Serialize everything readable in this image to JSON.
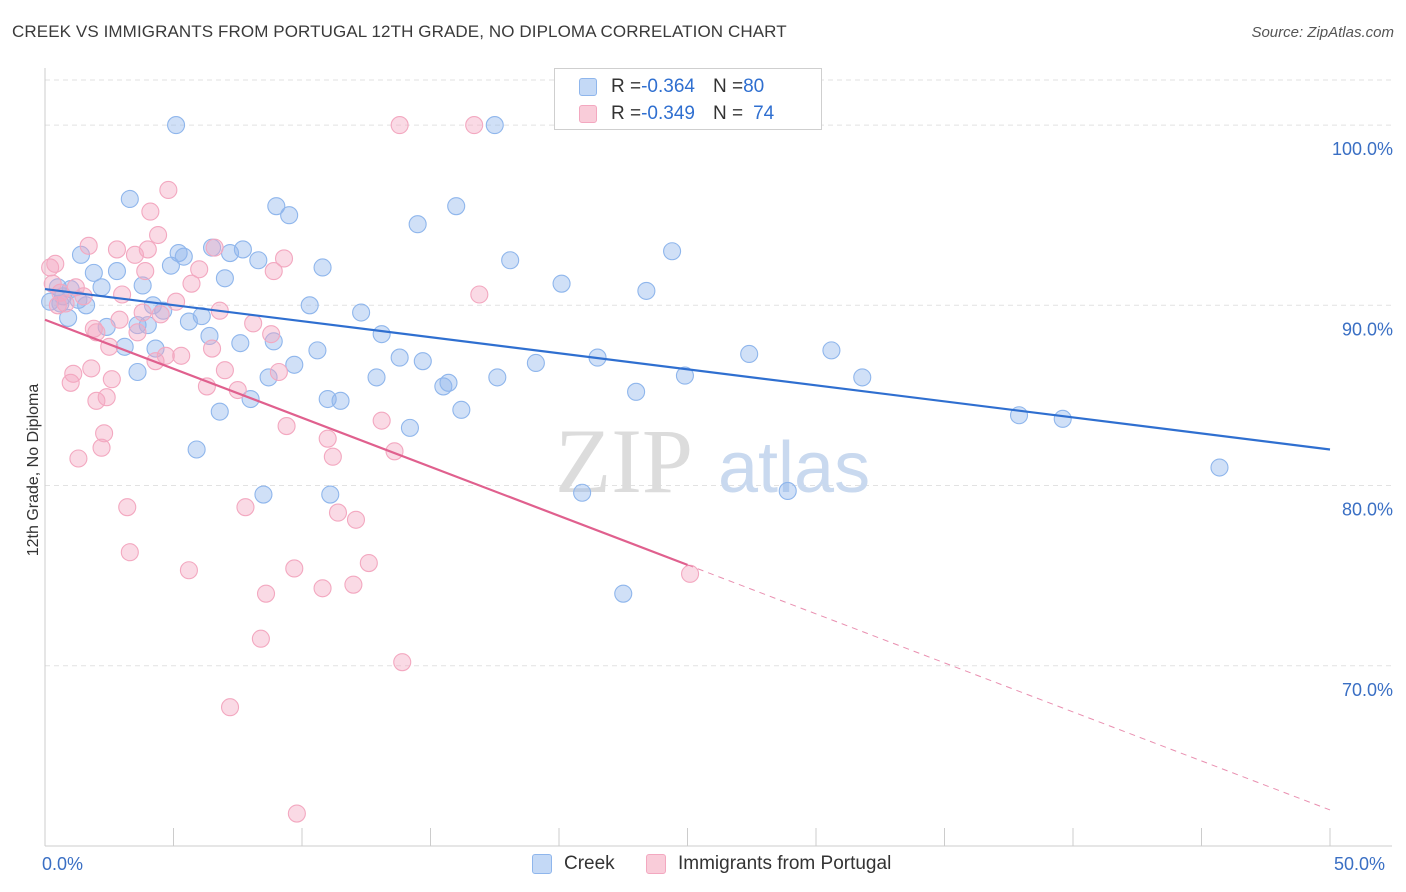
{
  "title": "CREEK VS IMMIGRANTS FROM PORTUGAL 12TH GRADE, NO DIPLOMA CORRELATION CHART",
  "source": "Source: ZipAtlas.com",
  "watermark": {
    "zip": "ZIP",
    "atlas": "atlas"
  },
  "legend_top": [
    {
      "r_label": "R = ",
      "r_value": "-0.364",
      "n_label": "N = ",
      "n_value": "80"
    },
    {
      "r_label": "R = ",
      "r_value": "-0.349",
      "n_label": "N = ",
      "n_value": "74"
    }
  ],
  "chart_data": {
    "type": "scatter",
    "xlabel": "",
    "ylabel": "12th Grade, No Diploma",
    "xlim": [
      0,
      50
    ],
    "ylim": [
      60,
      103.5
    ],
    "x_tick_labels": [
      "0.0%",
      "50.0%"
    ],
    "y_tick_values": [
      100,
      90,
      80,
      70
    ],
    "y_tick_labels": [
      "100.0%",
      "90.0%",
      "80.0%",
      "70.0%"
    ],
    "grid": true,
    "legend_position": "bottom",
    "series": [
      {
        "name": "Creek",
        "color": "#8fb6ec",
        "line_color": "#2f6fd0",
        "trend": {
          "x": [
            0,
            50
          ],
          "y": [
            90.9,
            82.0
          ],
          "dashed_from": null
        },
        "points": [
          [
            0.2,
            90.2
          ],
          [
            0.5,
            91.0
          ],
          [
            0.6,
            90.1
          ],
          [
            0.9,
            89.3
          ],
          [
            1.0,
            90.9
          ],
          [
            1.4,
            92.8
          ],
          [
            1.6,
            90.0
          ],
          [
            1.9,
            91.8
          ],
          [
            2.2,
            91.0
          ],
          [
            2.8,
            91.9
          ],
          [
            2.4,
            88.8
          ],
          [
            3.1,
            87.7
          ],
          [
            3.3,
            95.9
          ],
          [
            3.6,
            88.9
          ],
          [
            3.6,
            86.3
          ],
          [
            3.8,
            91.1
          ],
          [
            4.0,
            88.9
          ],
          [
            4.2,
            90.0
          ],
          [
            4.3,
            87.6
          ],
          [
            4.6,
            89.7
          ],
          [
            4.9,
            92.2
          ],
          [
            5.1,
            100.0
          ],
          [
            5.2,
            92.9
          ],
          [
            5.4,
            92.7
          ],
          [
            5.6,
            89.1
          ],
          [
            5.9,
            82.0
          ],
          [
            6.1,
            89.4
          ],
          [
            6.4,
            88.3
          ],
          [
            6.5,
            93.2
          ],
          [
            6.8,
            84.1
          ],
          [
            7.0,
            91.5
          ],
          [
            7.2,
            92.9
          ],
          [
            7.6,
            87.9
          ],
          [
            7.7,
            93.1
          ],
          [
            8.0,
            84.8
          ],
          [
            8.3,
            92.5
          ],
          [
            8.5,
            79.5
          ],
          [
            8.7,
            86.0
          ],
          [
            8.9,
            88.0
          ],
          [
            9.0,
            95.5
          ],
          [
            9.5,
            95.0
          ],
          [
            9.7,
            86.7
          ],
          [
            10.3,
            90.0
          ],
          [
            10.6,
            87.5
          ],
          [
            10.8,
            92.1
          ],
          [
            11.0,
            84.8
          ],
          [
            11.1,
            79.5
          ],
          [
            11.5,
            84.7
          ],
          [
            12.3,
            89.6
          ],
          [
            12.9,
            86.0
          ],
          [
            13.1,
            88.4
          ],
          [
            13.8,
            87.1
          ],
          [
            14.2,
            83.2
          ],
          [
            14.5,
            94.5
          ],
          [
            14.7,
            86.9
          ],
          [
            15.5,
            85.5
          ],
          [
            15.7,
            85.7
          ],
          [
            16.0,
            95.5
          ],
          [
            16.2,
            84.2
          ],
          [
            17.5,
            100.0
          ],
          [
            17.6,
            86.0
          ],
          [
            18.1,
            92.5
          ],
          [
            19.1,
            86.8
          ],
          [
            20.1,
            91.2
          ],
          [
            20.9,
            79.6
          ],
          [
            21.5,
            87.1
          ],
          [
            22.5,
            74.0
          ],
          [
            23.0,
            85.2
          ],
          [
            23.4,
            90.8
          ],
          [
            24.4,
            93.0
          ],
          [
            24.9,
            86.1
          ],
          [
            27.4,
            87.3
          ],
          [
            28.9,
            79.7
          ],
          [
            30.6,
            87.5
          ],
          [
            31.8,
            86.0
          ],
          [
            37.9,
            83.9
          ],
          [
            39.6,
            83.7
          ],
          [
            45.7,
            81.0
          ],
          [
            0.7,
            90.5
          ],
          [
            1.3,
            90.3
          ]
        ]
      },
      {
        "name": "Immigrants from Portugal",
        "color": "#f3a8c0",
        "line_color": "#e0608e",
        "trend": {
          "x": [
            0,
            50
          ],
          "y": [
            89.2,
            62.0
          ],
          "dashed_from": 25
        },
        "points": [
          [
            0.2,
            92.1
          ],
          [
            0.3,
            91.2
          ],
          [
            0.4,
            92.3
          ],
          [
            0.6,
            90.7
          ],
          [
            0.8,
            90.1
          ],
          [
            1.0,
            85.7
          ],
          [
            1.1,
            86.2
          ],
          [
            1.3,
            81.5
          ],
          [
            1.5,
            90.5
          ],
          [
            1.7,
            93.3
          ],
          [
            1.8,
            86.5
          ],
          [
            1.9,
            88.7
          ],
          [
            2.0,
            84.7
          ],
          [
            2.2,
            82.1
          ],
          [
            2.3,
            82.9
          ],
          [
            2.4,
            84.9
          ],
          [
            2.5,
            87.7
          ],
          [
            2.6,
            85.9
          ],
          [
            2.8,
            93.1
          ],
          [
            2.9,
            89.2
          ],
          [
            3.0,
            90.6
          ],
          [
            3.2,
            78.8
          ],
          [
            3.3,
            76.3
          ],
          [
            3.5,
            92.8
          ],
          [
            3.6,
            88.5
          ],
          [
            3.8,
            89.6
          ],
          [
            3.9,
            91.9
          ],
          [
            4.0,
            93.1
          ],
          [
            4.1,
            95.2
          ],
          [
            4.3,
            86.9
          ],
          [
            4.4,
            93.9
          ],
          [
            4.5,
            89.5
          ],
          [
            4.7,
            87.2
          ],
          [
            4.8,
            96.4
          ],
          [
            5.1,
            90.2
          ],
          [
            5.3,
            87.2
          ],
          [
            5.6,
            75.3
          ],
          [
            5.7,
            91.2
          ],
          [
            6.0,
            92.0
          ],
          [
            6.3,
            85.5
          ],
          [
            6.5,
            87.6
          ],
          [
            6.6,
            93.2
          ],
          [
            6.8,
            89.7
          ],
          [
            7.0,
            86.4
          ],
          [
            7.2,
            67.7
          ],
          [
            7.5,
            85.3
          ],
          [
            7.8,
            78.8
          ],
          [
            8.1,
            89.0
          ],
          [
            8.4,
            71.5
          ],
          [
            8.6,
            74.0
          ],
          [
            8.8,
            88.4
          ],
          [
            8.9,
            91.9
          ],
          [
            9.1,
            86.3
          ],
          [
            9.3,
            92.6
          ],
          [
            9.4,
            83.3
          ],
          [
            9.7,
            75.4
          ],
          [
            9.8,
            61.8
          ],
          [
            10.8,
            74.3
          ],
          [
            11.0,
            82.6
          ],
          [
            11.2,
            81.6
          ],
          [
            11.4,
            78.5
          ],
          [
            12.0,
            74.5
          ],
          [
            12.1,
            78.1
          ],
          [
            12.6,
            75.7
          ],
          [
            13.1,
            83.6
          ],
          [
            13.6,
            81.9
          ],
          [
            13.9,
            70.2
          ],
          [
            13.8,
            100.0
          ],
          [
            16.7,
            100.0
          ],
          [
            16.9,
            90.6
          ],
          [
            25.1,
            75.1
          ],
          [
            0.5,
            90.0
          ],
          [
            1.2,
            91.0
          ],
          [
            2.0,
            88.5
          ]
        ]
      }
    ]
  }
}
